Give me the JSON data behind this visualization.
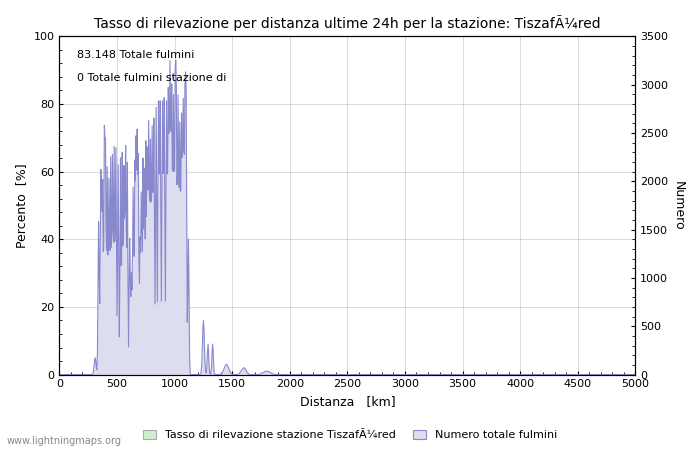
{
  "title": "Tasso di rilevazione per distanza ultime 24h per la stazione: TiszafÃ¼red",
  "xlabel": "Distanza   [km]",
  "ylabel_left": "Percento  [%]",
  "ylabel_right": "Numero",
  "annotation_line1": "83.148 Totale fulmini",
  "annotation_line2": "0 Totale fulmini stazione di",
  "xlim": [
    0,
    5000
  ],
  "ylim_left": [
    0,
    100
  ],
  "ylim_right": [
    0,
    3500
  ],
  "xticks": [
    0,
    500,
    1000,
    1500,
    2000,
    2500,
    3000,
    3500,
    4000,
    4500,
    5000
  ],
  "yticks_left": [
    0,
    20,
    40,
    60,
    80,
    100
  ],
  "yticks_right": [
    0,
    500,
    1000,
    1500,
    2000,
    2500,
    3000,
    3500
  ],
  "line_color": "#8888cc",
  "fill_color_blue": "#ddddf0",
  "fill_color_green": "#d0eed0",
  "bg_color": "#ffffff",
  "grid_color": "#cccccc",
  "legend_label_green": "Tasso di rilevazione stazione TiszafÃ¼red",
  "legend_label_blue": "Numero totale fulmini",
  "watermark": "www.lightningmaps.org"
}
